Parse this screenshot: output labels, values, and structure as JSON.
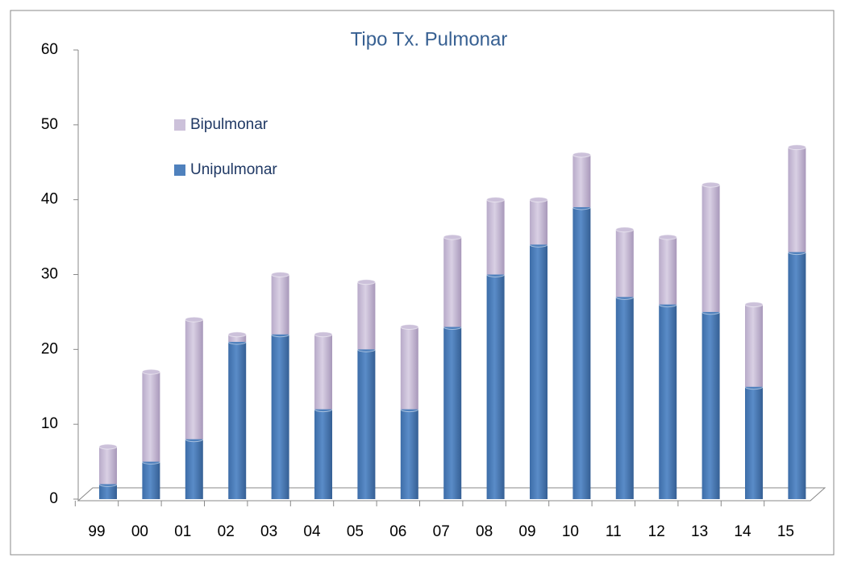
{
  "chart_data": {
    "type": "bar",
    "stacked": true,
    "title": "Tipo Tx. Pulmonar",
    "categories": [
      "99",
      "00",
      "01",
      "02",
      "03",
      "04",
      "05",
      "06",
      "07",
      "08",
      "09",
      "10",
      "11",
      "12",
      "13",
      "14",
      "15"
    ],
    "series": [
      {
        "name": "Unipulmonar",
        "color": "#4f81bd",
        "values": [
          2,
          5,
          8,
          21,
          22,
          12,
          20,
          12,
          23,
          30,
          34,
          39,
          27,
          26,
          25,
          15,
          33
        ]
      },
      {
        "name": "Bipulmonar",
        "color": "#ccc1da",
        "values": [
          5,
          12,
          16,
          1,
          8,
          10,
          9,
          11,
          12,
          10,
          6,
          7,
          9,
          9,
          17,
          11,
          14
        ]
      }
    ],
    "ylim": [
      0,
      60
    ],
    "yticks": [
      0,
      10,
      20,
      30,
      40,
      50,
      60
    ]
  }
}
